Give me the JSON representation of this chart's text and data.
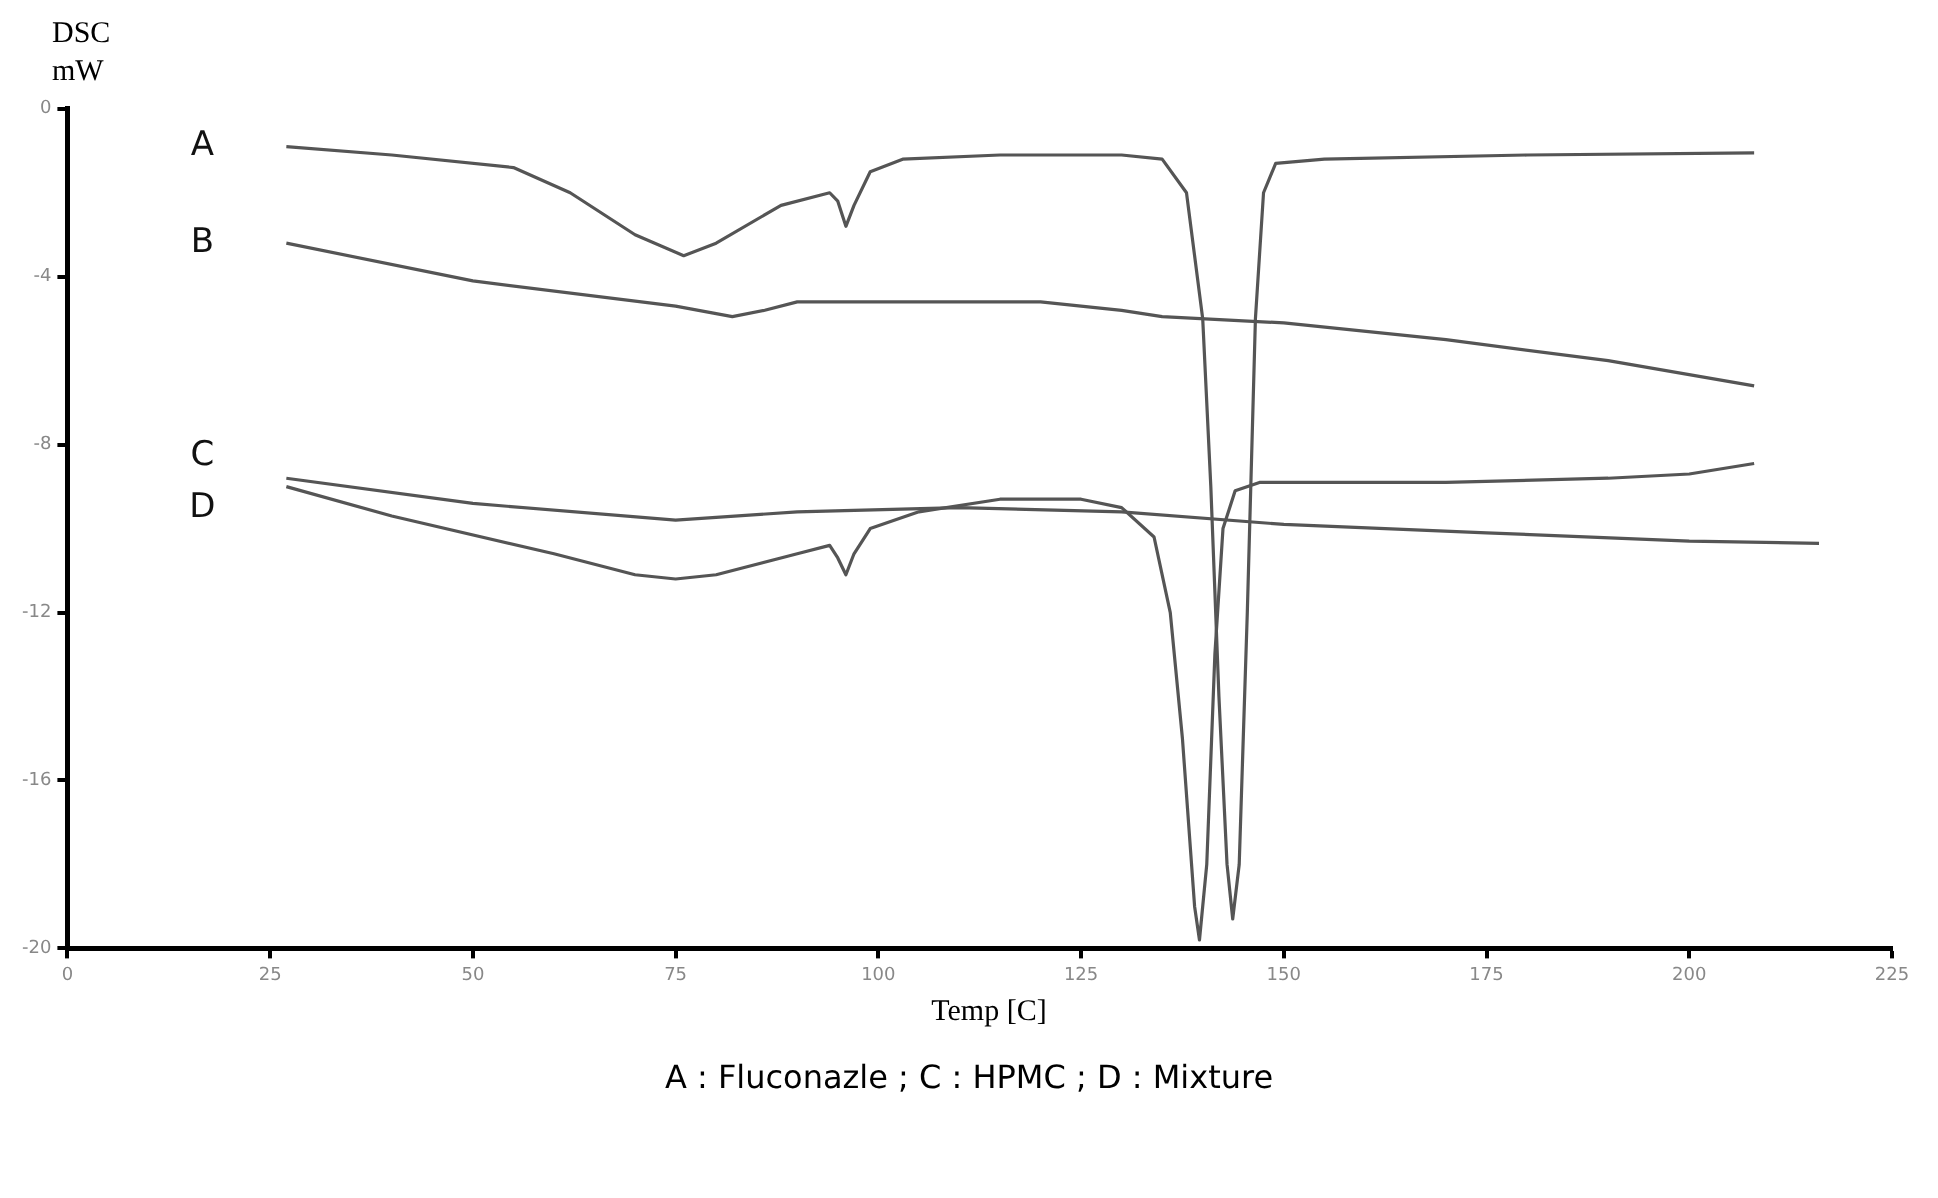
{
  "chart_data": {
    "type": "line",
    "xlabel": "Temp [C]",
    "ylabel": "DSC mW",
    "annotations": [
      "A : Fluconazle ; C : HPMC ; D : Mixture"
    ],
    "xlim": [
      0,
      225
    ],
    "xticks": [
      0,
      25,
      50,
      75,
      100,
      125,
      150,
      175,
      200,
      225
    ],
    "ylim": [
      -20,
      0
    ],
    "yticks": [
      0,
      -4,
      -8,
      -12,
      -16,
      -20
    ],
    "grid": false,
    "legend": false,
    "marker": "none",
    "line_style": "solid",
    "series": [
      {
        "name": "A",
        "color": "#555555",
        "x": [
          27,
          40,
          55,
          62,
          70,
          76,
          80,
          88,
          94,
          95,
          96,
          97,
          99,
          103,
          115,
          130,
          135,
          138,
          140,
          141,
          142,
          143,
          143.7,
          144.5,
          145.5,
          146.5,
          147.5,
          149,
          155,
          180,
          208
        ],
        "values": [
          -0.9,
          -1.1,
          -1.4,
          -2.0,
          -3.0,
          -3.5,
          -3.2,
          -2.3,
          -2.0,
          -2.2,
          -2.8,
          -2.3,
          -1.5,
          -1.2,
          -1.1,
          -1.1,
          -1.2,
          -2.0,
          -5,
          -9,
          -14,
          -18,
          -19.3,
          -18,
          -12,
          -5,
          -2,
          -1.3,
          -1.2,
          -1.1,
          -1.05
        ]
      },
      {
        "name": "B",
        "color": "#555555",
        "x": [
          27,
          50,
          75,
          82,
          86,
          90,
          120,
          130,
          135,
          150,
          170,
          190,
          208
        ],
        "values": [
          -3.2,
          -4.1,
          -4.7,
          -4.95,
          -4.8,
          -4.6,
          -4.6,
          -4.8,
          -4.95,
          -5.1,
          -5.5,
          -6.0,
          -6.6
        ]
      },
      {
        "name": "C",
        "color": "#555555",
        "x": [
          27,
          50,
          75,
          90,
          110,
          130,
          150,
          175,
          200,
          216
        ],
        "values": [
          -8.8,
          -9.4,
          -9.8,
          -9.6,
          -9.5,
          -9.6,
          -9.9,
          -10.1,
          -10.3,
          -10.35
        ]
      },
      {
        "name": "D",
        "color": "#555555",
        "x": [
          27,
          40,
          60,
          70,
          75,
          80,
          90,
          94,
          95,
          96,
          97,
          99,
          105,
          115,
          125,
          130,
          134,
          136,
          137.5,
          139,
          139.6,
          140.5,
          141.5,
          142.5,
          144,
          147,
          170,
          190,
          200,
          208
        ],
        "values": [
          -9.0,
          -9.7,
          -10.6,
          -11.1,
          -11.2,
          -11.1,
          -10.6,
          -10.4,
          -10.7,
          -11.1,
          -10.6,
          -10.0,
          -9.6,
          -9.3,
          -9.3,
          -9.5,
          -10.2,
          -12,
          -15,
          -19,
          -19.8,
          -18,
          -13,
          -10,
          -9.1,
          -8.9,
          -8.9,
          -8.8,
          -8.7,
          -8.45
        ]
      }
    ]
  }
}
